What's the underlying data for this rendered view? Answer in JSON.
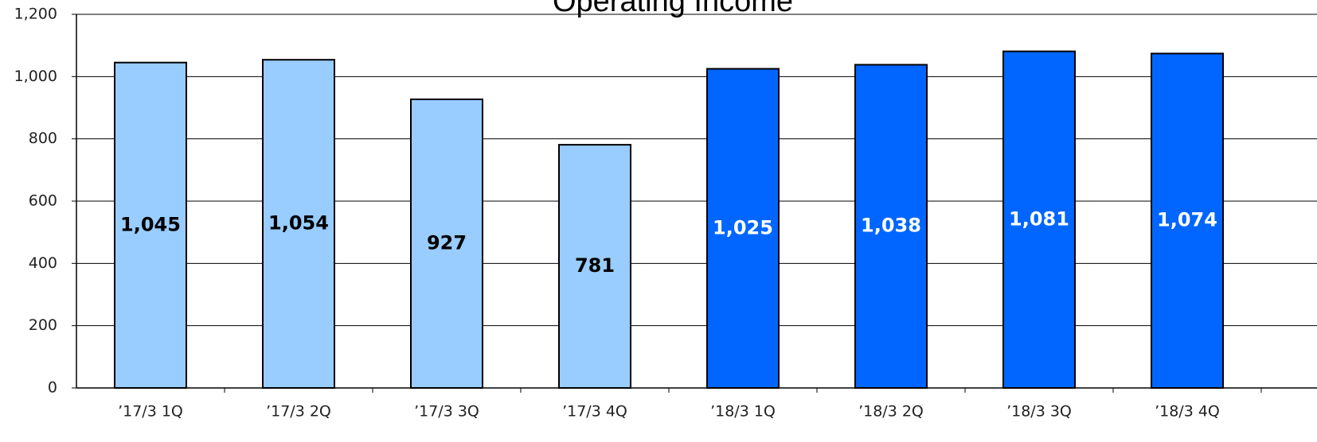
{
  "chart_data": {
    "type": "bar",
    "title": "Operating Income",
    "categories": [
      "’17/3 1Q",
      "’17/3 2Q",
      "’17/3 3Q",
      "’17/3 4Q",
      "’18/3 1Q",
      "’18/3 2Q",
      "’18/3 3Q",
      "’18/3 4Q"
    ],
    "values": [
      1045,
      1054,
      927,
      781,
      1025,
      1038,
      1081,
      1074
    ],
    "value_labels": [
      "1,045",
      "1,054",
      "927",
      "781",
      "1,025",
      "1,038",
      "1,081",
      "1,074"
    ],
    "colors": [
      "#99ccff",
      "#99ccff",
      "#99ccff",
      "#99ccff",
      "#0066ff",
      "#0066ff",
      "#0066ff",
      "#0066ff"
    ],
    "ylim": [
      0,
      1200
    ],
    "yticks": [
      0,
      200,
      400,
      600,
      800,
      {
        "value": 1000,
        "label": "1,000"
      },
      {
        "value": 1200,
        "label": "1,200"
      }
    ],
    "grid": true
  }
}
